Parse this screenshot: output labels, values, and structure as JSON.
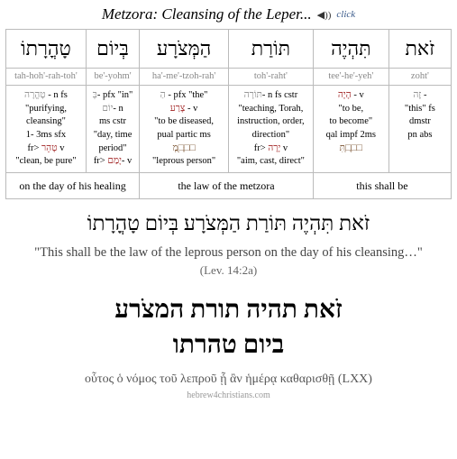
{
  "header": {
    "title": "Metzora: Cleansing of the Leper...",
    "click_label": "click"
  },
  "table": {
    "hebrew": [
      "טָהֳרָתוֹ",
      "בְּיוֹם",
      "הַמְּצֹרָע",
      "תּוֹרַת",
      "תִּהְיֶה",
      "זֹאת"
    ],
    "translit": [
      "tah-hoh'-rah-toh'",
      "be'-yohm'",
      "ha'-me'-tzoh-rah'",
      "toh'-raht'",
      "tee'-he'-yeh'",
      "zoht'"
    ],
    "gloss": [
      "<span class='gray'>טָהֳרָה</span> - n fs<br>\"purifying, cleansing\"<br>1- 3ms sfx<br>fr&gt; <span class='red'>טָהֵר</span> v<br>\"clean, be pure\"",
      "<span class='gray'>בְּ</span>- pfx \"in\"<br><span class='gray'>יוֹם</span>- n<br>ms cstr<br>\"day, time period\"<br>fr&gt; <span class='red'>יָמַם</span>- v",
      "<span class='gray'>הַ</span> - pfx \"the\"<br><span class='red'>צָרַע</span> - v<br>\"to be diseased,<br>pual partic ms<br><span class='brown'>מְ□ֻ□ָּ□</span><br>\"leprous person\"",
      "<span class='gray'>תּוֹרָה</span>- n fs cstr<br>\"teaching, Torah, instruction, order, direction\"<br>fr&gt; <span class='red'>יָרָה</span> v<br>\"aim, cast, direct\"",
      "<span class='red'>הָיָה</span> - v<br>\"to be,<br>to become\"<br>qal impf 2ms<br><span class='brown'>תִּ□ְ□ֶ□</span>",
      "<span class='gray'>זֶה</span> -<br>\"this\" fs<br>dmstr<br>pn abs"
    ],
    "phrases": [
      "on the day of his healing",
      "the law of the metzora",
      "this shall be"
    ]
  },
  "verse": {
    "hebrew_pointed": "זֹאת תִּהְיֶה תּוֹרַת הַמְּצֹרָע בְּיוֹם טָהֳרָתוֹ",
    "english": "\"This shall be the law of the leprous person on the day of his cleansing…\"",
    "ref": "(Lev. 14:2a)",
    "hebrew_large_l1": "זֹאת תהיה תורת המצֹרע",
    "hebrew_large_l2": "ביום טהרתו",
    "greek": "οὗτος ὁ νόμος τοῦ λεπροῦ ᾗ ἂν ἡμέρᾳ καθαρισθῇ",
    "greek_src": "(LXX)"
  },
  "credit": "hebrew4christians.com"
}
